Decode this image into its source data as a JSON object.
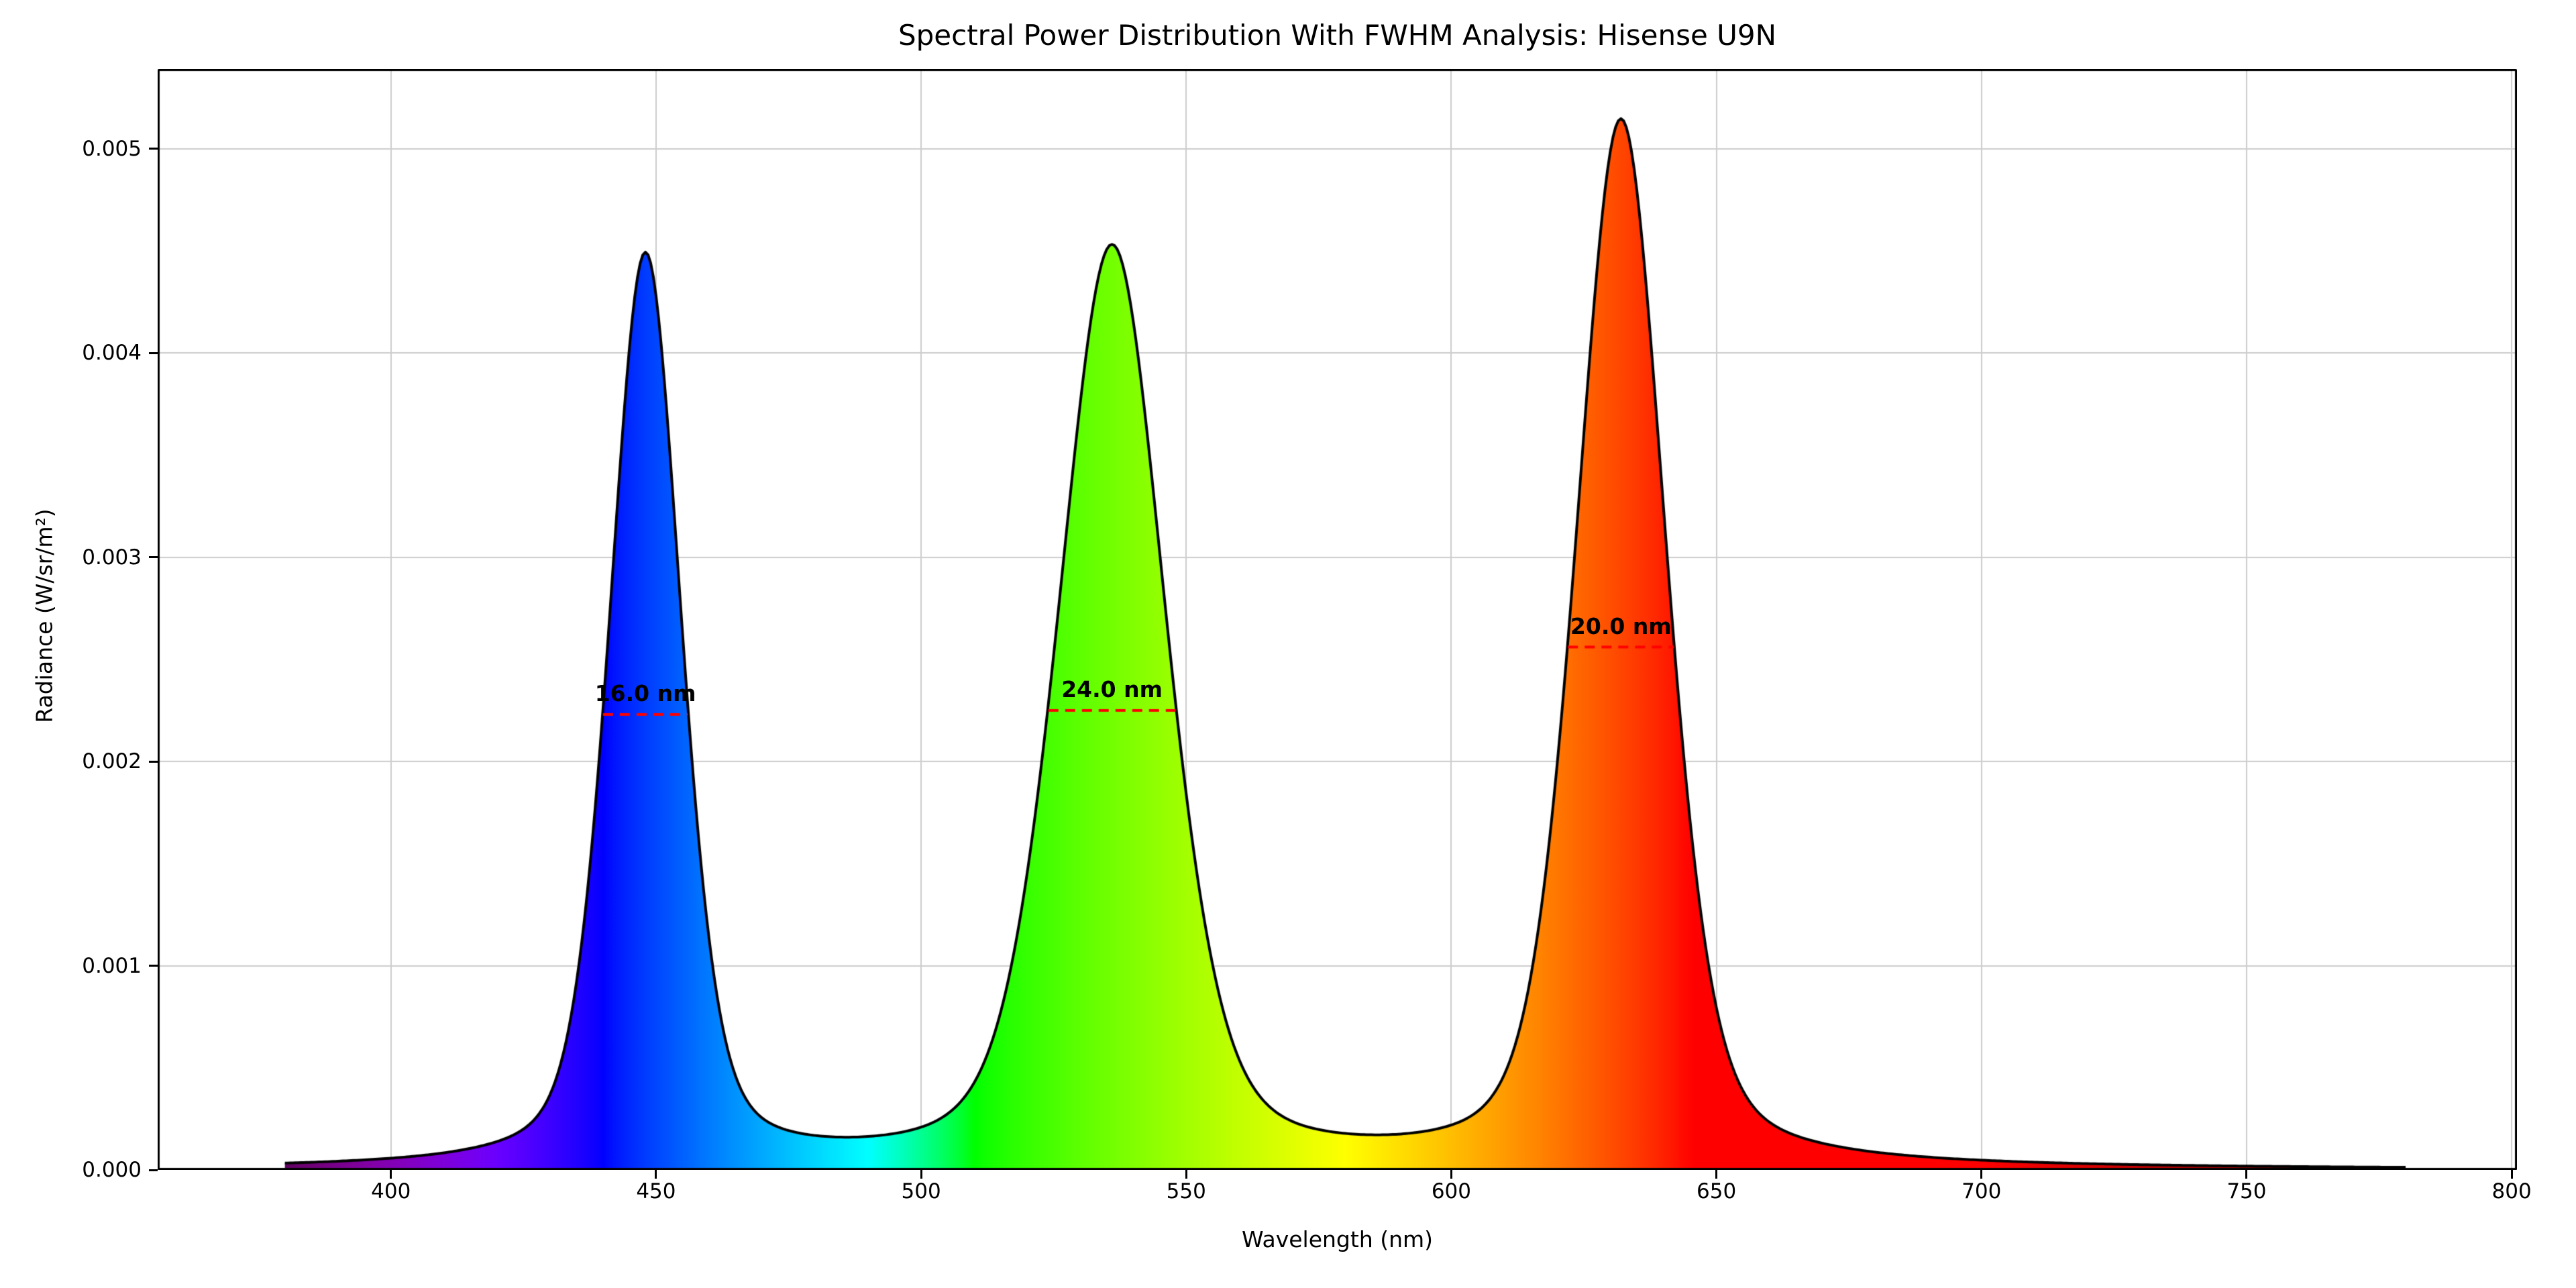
{
  "chart_data": {
    "type": "area",
    "title": "Spectral Power Distribution With FWHM Analysis: Hisense U9N",
    "xlabel": "Wavelength (nm)",
    "ylabel": "Radiance (W/sr/m²)",
    "xlim": [
      356,
      801
    ],
    "ylim": [
      0,
      0.00539
    ],
    "x_tick_values": [
      400,
      450,
      500,
      550,
      600,
      650,
      700,
      750,
      800
    ],
    "x_tick_labels": [
      "400",
      "450",
      "500",
      "550",
      "600",
      "650",
      "700",
      "750",
      "800"
    ],
    "y_tick_values": [
      0.0,
      0.001,
      0.002,
      0.003,
      0.004,
      0.005
    ],
    "y_tick_labels": [
      "0.000",
      "0.001",
      "0.002",
      "0.003",
      "0.004",
      "0.005"
    ],
    "grid": true,
    "grid_color": "#cccccc",
    "curve_color": "#000000",
    "fwhm_line_color": "#ff0000",
    "spectrum_range_nm": [
      380,
      780
    ],
    "profile": "pseudo_voigt",
    "lorentz_fraction": 0.35,
    "peaks": [
      {
        "name": "blue",
        "center_nm": 448,
        "fwhm_nm": 16.0,
        "peak_radiance": 0.00446,
        "half_max_radiance": 0.00223,
        "annotation": "16.0 nm"
      },
      {
        "name": "green",
        "center_nm": 536,
        "fwhm_nm": 24.0,
        "peak_radiance": 0.0045,
        "half_max_radiance": 0.00225,
        "annotation": "24.0 nm"
      },
      {
        "name": "red",
        "center_nm": 632,
        "fwhm_nm": 20.0,
        "peak_radiance": 0.00512,
        "half_max_radiance": 0.00256,
        "annotation": "20.0 nm"
      }
    ]
  }
}
